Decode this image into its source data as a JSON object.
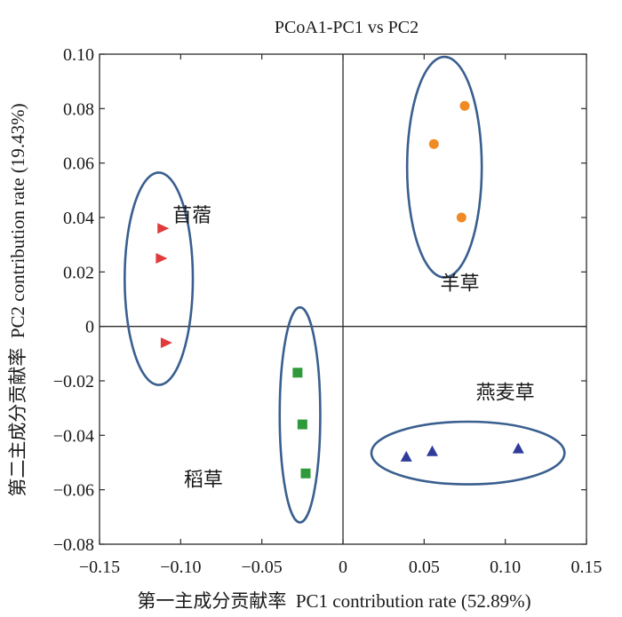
{
  "chart_data": {
    "type": "scatter",
    "title": "PCoA1-PC1 vs PC2",
    "xlabel": "第一主成分贡献率  PC1 contribution rate (52.89%)",
    "ylabel": "第二主成分贡献率  PC2 contribution rate (19.43%)",
    "xlim": [
      -0.15,
      0.15
    ],
    "ylim": [
      -0.08,
      0.1
    ],
    "xticks": [
      "−0.15",
      "−0.10",
      "−0.05",
      "0",
      "0.05",
      "0.10",
      "0.15"
    ],
    "yticks": [
      "−0.08",
      "−0.06",
      "−0.04",
      "−0.02",
      "0",
      "0.02",
      "0.04",
      "0.06",
      "0.08",
      "0.10"
    ],
    "xtick_values": [
      -0.15,
      -0.1,
      -0.05,
      0,
      0.05,
      0.1,
      0.15
    ],
    "ytick_values": [
      -0.08,
      -0.06,
      -0.04,
      -0.02,
      0,
      0.02,
      0.04,
      0.06,
      0.08,
      0.1
    ],
    "grid": false,
    "zero_lines": true,
    "series": [
      {
        "name": "苜蓿",
        "marker": "triangle-right",
        "color": "#e03a3a",
        "points": [
          [
            -0.111,
            0.036
          ],
          [
            -0.112,
            0.025
          ],
          [
            -0.109,
            -0.006
          ]
        ],
        "ellipse": {
          "cx": -0.1135,
          "cy": 0.0175,
          "rx": 0.021,
          "ry": 0.039
        },
        "label_pos": [
          -0.093,
          0.041
        ]
      },
      {
        "name": "羊草",
        "marker": "circle",
        "color": "#f08a24",
        "points": [
          [
            0.075,
            0.081
          ],
          [
            0.056,
            0.067
          ],
          [
            0.073,
            0.04
          ]
        ],
        "ellipse": {
          "cx": 0.0625,
          "cy": 0.0585,
          "rx": 0.023,
          "ry": 0.0405
        },
        "label_pos": [
          0.072,
          0.016
        ]
      },
      {
        "name": "稻草",
        "marker": "square",
        "color": "#2e9a3a",
        "points": [
          [
            -0.028,
            -0.017
          ],
          [
            -0.025,
            -0.036
          ],
          [
            -0.023,
            -0.054
          ]
        ],
        "ellipse": {
          "cx": -0.0265,
          "cy": -0.0325,
          "rx": 0.0125,
          "ry": 0.0395
        },
        "label_pos": [
          -0.086,
          -0.056
        ]
      },
      {
        "name": "燕麦草",
        "marker": "triangle-up",
        "color": "#2f3b99",
        "points": [
          [
            0.039,
            -0.048
          ],
          [
            0.055,
            -0.046
          ],
          [
            0.108,
            -0.045
          ]
        ],
        "ellipse": {
          "cx": 0.077,
          "cy": -0.0465,
          "rx": 0.0595,
          "ry": 0.0115
        },
        "label_pos": [
          0.1,
          -0.024
        ]
      }
    ],
    "colors": {
      "ellipse": "#3a5f8f",
      "axes": "#2b2b2b"
    }
  }
}
